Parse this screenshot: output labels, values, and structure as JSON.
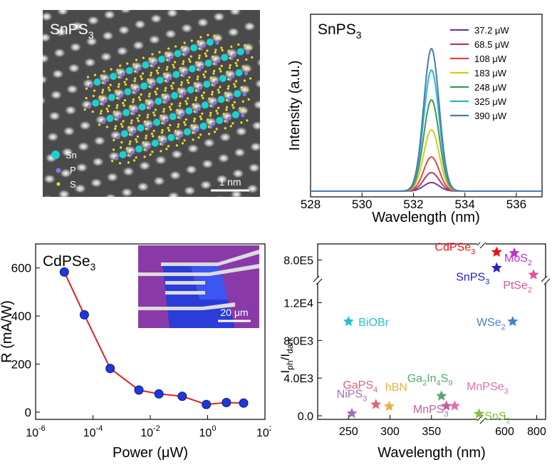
{
  "panel_a": {
    "material_label": "SnPS",
    "material_sub": "3",
    "legend": [
      {
        "label": "Sn",
        "color": "#19d3d3"
      },
      {
        "label": "P",
        "color": "#8a74e8"
      },
      {
        "label": "S",
        "color": "#f0e020"
      }
    ],
    "scale_bar": "1 nm"
  },
  "chart_data": [
    {
      "type": "line",
      "title": "SnPS3",
      "xlabel": "Wavelength (nm)",
      "ylabel": "Intensity (a.u.)",
      "xlim": [
        528,
        537
      ],
      "xticks": [
        528,
        530,
        532,
        534,
        536
      ],
      "peak_center": 532.7,
      "series": [
        {
          "name": "37.2 μW",
          "color": "#6a3aa0",
          "peak": 0.06
        },
        {
          "name": "68.5 μW",
          "color": "#b03a70",
          "peak": 0.13
        },
        {
          "name": "108 μW",
          "color": "#e04848",
          "peak": 0.24
        },
        {
          "name": "183 μW",
          "color": "#d8c81a",
          "peak": 0.43
        },
        {
          "name": "248 μW",
          "color": "#3a9a50",
          "peak": 0.64
        },
        {
          "name": "325 μW",
          "color": "#28b8c8",
          "peak": 0.85
        },
        {
          "name": "390 μW",
          "color": "#4a78b8",
          "peak": 1.0
        }
      ]
    },
    {
      "type": "scatter",
      "title": "CdPSe3",
      "xlabel": "Power (μW)",
      "ylabel": "R (mA/W)",
      "xscale": "log",
      "ylim": [
        -30,
        700
      ],
      "yticks": [
        "0",
        "200",
        "400",
        "600"
      ],
      "xtick_labels": [
        {
          "base": "10",
          "exp": "-6"
        },
        {
          "base": "10",
          "exp": "-4"
        },
        {
          "base": "10",
          "exp": "-2"
        },
        {
          "base": "10",
          "exp": "0"
        },
        {
          "base": "10",
          "exp": "2"
        }
      ],
      "points": [
        {
          "x": 1e-05,
          "y": 583
        },
        {
          "x": 5e-05,
          "y": 405
        },
        {
          "x": 0.0004,
          "y": 182
        },
        {
          "x": 0.004,
          "y": 92
        },
        {
          "x": 0.02,
          "y": 76
        },
        {
          "x": 0.13,
          "y": 66
        },
        {
          "x": 0.9,
          "y": 32
        },
        {
          "x": 4.5,
          "y": 40
        },
        {
          "x": 18,
          "y": 38
        }
      ],
      "inset_scale_bar": "20 μm"
    },
    {
      "type": "scatter",
      "xlabel": "Wavelength (nm)",
      "ylabel": "Iph/Idark",
      "yticks_lower": [
        "0.0",
        "4.0E3",
        "8.0E3",
        "1.2E4"
      ],
      "yticks_upper": [
        "8.0E5"
      ],
      "xticks": [
        "250",
        "300",
        "350",
        "600",
        "800"
      ],
      "points": [
        {
          "label": "CdPSe",
          "sub": "3",
          "x": 550,
          "y": 880000,
          "color": "#ee1111"
        },
        {
          "label": "MoS",
          "sub": "2",
          "x": 660,
          "y": 870000,
          "color": "#bb33cc"
        },
        {
          "label": "SnPS",
          "sub": "3",
          "x": 550,
          "y": 720000,
          "color": "#2222cc"
        },
        {
          "label": "PtSe",
          "sub": "2",
          "x": 780,
          "y": 650000,
          "color": "#dd5599"
        },
        {
          "label": "BiOBr",
          "sub": "",
          "x": 250,
          "y": 10000,
          "color": "#22c4c4"
        },
        {
          "label": "WSe",
          "sub": "2",
          "x": 650,
          "y": 10000,
          "color": "#4a82c8"
        },
        {
          "label": "Ga",
          "sub": "",
          "x": 362,
          "y": 2100,
          "color": "#55a870"
        },
        {
          "label": "GaPS",
          "sub": "4",
          "x": 283,
          "y": 1200,
          "color": "#dd6677"
        },
        {
          "label": "hBN",
          "sub": "",
          "x": 299,
          "y": 1000,
          "color": "#e8b040"
        },
        {
          "label": "NiPS",
          "sub": "3",
          "x": 254,
          "y": 250,
          "color": "#a070c0"
        },
        {
          "label": "MnPS",
          "sub": "3",
          "x": 368,
          "y": 1050,
          "color": "#c060a0"
        },
        {
          "label": "MnPSe",
          "sub": "3",
          "x": 378,
          "y": 1050,
          "color": "#e070b0"
        },
        {
          "label": "SnS",
          "sub": "2",
          "x": 440,
          "y": 200,
          "color": "#88c040"
        }
      ],
      "ga_label_parts": [
        "Ga",
        "2",
        "In",
        "4",
        "S",
        "9"
      ],
      "ylabel_parts": [
        "I",
        "ph",
        "/I",
        "dark"
      ],
      "upper_tick_sub": "8.0E5"
    }
  ]
}
